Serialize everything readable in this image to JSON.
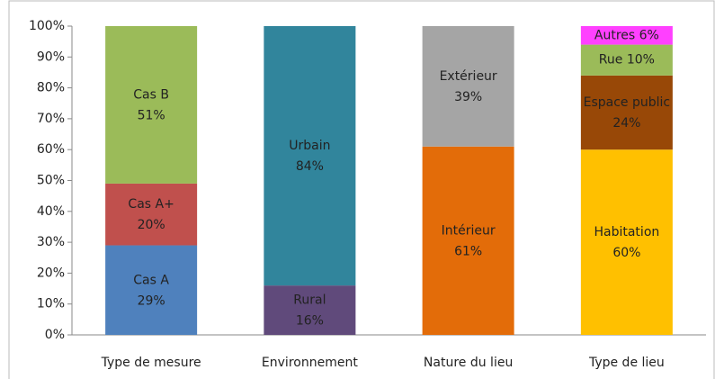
{
  "chart_data": {
    "type": "stacked_bar",
    "ylim": [
      0,
      100
    ],
    "yticks": [
      {
        "value": 0,
        "label": "0%"
      },
      {
        "value": 10,
        "label": "10%"
      },
      {
        "value": 20,
        "label": "20%"
      },
      {
        "value": 30,
        "label": "30%"
      },
      {
        "value": 40,
        "label": "40%"
      },
      {
        "value": 50,
        "label": "50%"
      },
      {
        "value": 60,
        "label": "60%"
      },
      {
        "value": 70,
        "label": "70%"
      },
      {
        "value": 80,
        "label": "80%"
      },
      {
        "value": 90,
        "label": "90%"
      },
      {
        "value": 100,
        "label": "100%"
      }
    ],
    "categories": [
      "Type de mesure",
      "Environnement",
      "Nature du lieu",
      "Type de lieu"
    ],
    "bars": [
      {
        "segments": [
          "Cas A",
          "Cas A+",
          "Cas B"
        ],
        "values": [
          29,
          20,
          51
        ],
        "value_labels": [
          "29%",
          "20%",
          "51%"
        ],
        "colors": [
          "#4f81bd",
          "#c0504d",
          "#9bbb59"
        ]
      },
      {
        "segments": [
          "Rural",
          "Urbain"
        ],
        "values": [
          16,
          84
        ],
        "value_labels": [
          "16%",
          "84%"
        ],
        "colors": [
          "#604a7b",
          "#31859c"
        ]
      },
      {
        "segments": [
          "Intérieur",
          "Extérieur"
        ],
        "values": [
          61,
          39
        ],
        "value_labels": [
          "61%",
          "39%"
        ],
        "colors": [
          "#e36c09",
          "#a5a5a5"
        ]
      },
      {
        "segments": [
          "Habitation",
          "Espace public",
          "Rue",
          "Autres"
        ],
        "values": [
          60,
          24,
          10,
          6
        ],
        "value_labels": [
          "60%",
          "24%",
          "10%",
          "6%"
        ],
        "colors": [
          "#ffc000",
          "#984807",
          "#9bbb59",
          "#ff40ff"
        ]
      }
    ]
  }
}
